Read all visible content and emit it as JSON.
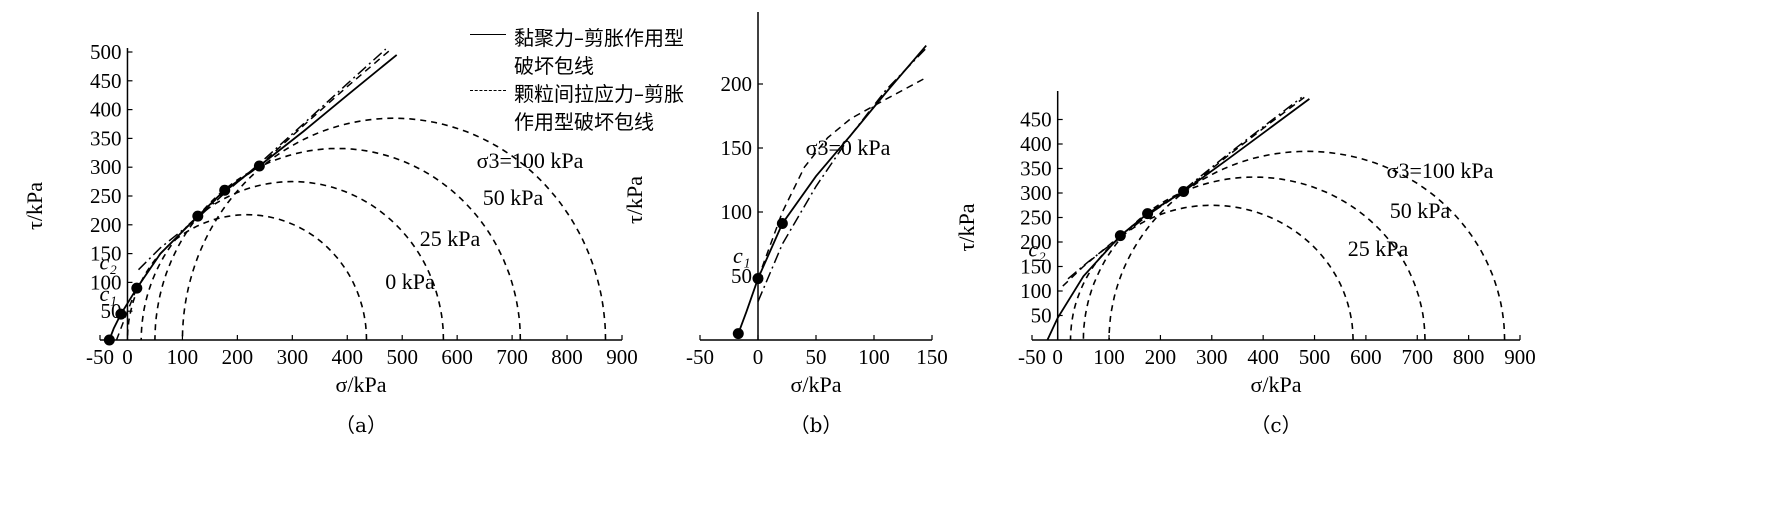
{
  "legend": {
    "entries": [
      {
        "label_line1": "黏聚力–剪胀作用型",
        "label_line2": "破坏包线",
        "style": "solid"
      },
      {
        "label_line1": "颗粒间拉应力–剪胀",
        "label_line2": "作用型破坏包线",
        "style": "dashdot"
      }
    ]
  },
  "chart_data": [
    {
      "id": "a",
      "type": "line",
      "panel_label": "（a）",
      "xlabel": "σ/kPa",
      "ylabel": "τ/kPa",
      "xlim": [
        -50,
        900
      ],
      "ylim": [
        0,
        500
      ],
      "xticks": [
        -50,
        0,
        100,
        200,
        300,
        400,
        500,
        600,
        700,
        800,
        900
      ],
      "yticks": [
        50,
        100,
        150,
        200,
        250,
        300,
        350,
        400,
        450,
        500
      ],
      "circles": [
        {
          "label": "0 kPa",
          "sigma3": 0,
          "sigma1": 435
        },
        {
          "label": "25 kPa",
          "sigma3": 25,
          "sigma1": 575
        },
        {
          "label": "50 kPa",
          "sigma3": 50,
          "sigma1": 715
        },
        {
          "label": "σ3=100 kPa",
          "sigma3": 100,
          "sigma1": 870
        }
      ],
      "points": [
        [
          -33,
          0
        ],
        [
          -12,
          45
        ],
        [
          17,
          90
        ],
        [
          128,
          215
        ],
        [
          177,
          260
        ],
        [
          240,
          302
        ]
      ],
      "series": [
        {
          "style": "solid",
          "x": [
            -33,
            -25,
            -12,
            17,
            60,
            128,
            177,
            240,
            320,
            400,
            490
          ],
          "y": [
            0,
            20,
            45,
            90,
            150,
            215,
            260,
            302,
            362,
            425,
            495
          ]
        },
        {
          "style": "dashed",
          "x": [
            -20,
            0,
            17,
            60,
            128,
            177,
            240,
            320,
            400,
            480
          ],
          "y": [
            0,
            50,
            90,
            150,
            215,
            258,
            302,
            372,
            440,
            505
          ]
        },
        {
          "style": "dashdot",
          "x": [
            20,
            60,
            128,
            177,
            240,
            320,
            400,
            470
          ],
          "y": [
            122,
            160,
            212,
            255,
            306,
            375,
            445,
            505
          ]
        }
      ],
      "annotations": [
        {
          "text": "c₂",
          "x": -35,
          "y": 122
        },
        {
          "text": "c₁",
          "x": -35,
          "y": 68
        }
      ]
    },
    {
      "id": "b",
      "type": "line",
      "panel_label": "（b）",
      "xlabel": "σ/kPa",
      "ylabel": "τ/kPa",
      "xlim": [
        -50,
        150
      ],
      "ylim": [
        0,
        250
      ],
      "xticks": [
        -50,
        0,
        50,
        100,
        150
      ],
      "yticks": [
        50,
        100,
        150,
        200
      ],
      "circles": [
        {
          "label": "σ3=0 kPa",
          "sigma3": 0,
          "sigma1": 0
        }
      ],
      "points": [
        [
          -17,
          5
        ],
        [
          0,
          48
        ],
        [
          21,
          91
        ]
      ],
      "series": [
        {
          "style": "solid",
          "x": [
            -17,
            -10,
            0,
            21,
            50,
            80,
            110,
            145
          ],
          "y": [
            5,
            22,
            48,
            91,
            128,
            160,
            193,
            230
          ]
        },
        {
          "style": "dashed",
          "x": [
            0,
            21,
            40,
            60,
            80,
            110,
            145
          ],
          "y": [
            48,
            100,
            135,
            158,
            173,
            188,
            205
          ]
        },
        {
          "style": "dashdot",
          "x": [
            0,
            21,
            50,
            80,
            110,
            145
          ],
          "y": [
            30,
            75,
            120,
            160,
            195,
            228
          ]
        }
      ],
      "annotations": [
        {
          "text": "c₁",
          "x": -14,
          "y": 60
        }
      ]
    },
    {
      "id": "c",
      "type": "line",
      "panel_label": "（c）",
      "xlabel": "σ/kPa",
      "ylabel": "τ/kPa",
      "xlim": [
        -50,
        900
      ],
      "ylim": [
        0,
        500
      ],
      "xticks": [
        -50,
        0,
        100,
        200,
        300,
        400,
        500,
        600,
        700,
        800,
        900
      ],
      "yticks": [
        50,
        100,
        150,
        200,
        250,
        300,
        350,
        400,
        450
      ],
      "circles": [
        {
          "label": "25 kPa",
          "sigma3": 25,
          "sigma1": 575
        },
        {
          "label": "50 kPa",
          "sigma3": 50,
          "sigma1": 715
        },
        {
          "label": "σ3=100 kPa",
          "sigma3": 100,
          "sigma1": 870
        }
      ],
      "points": [
        [
          122,
          213
        ],
        [
          175,
          258
        ],
        [
          245,
          303
        ]
      ],
      "series": [
        {
          "style": "solid",
          "x": [
            -20,
            0,
            50,
            122,
            175,
            245,
            330,
            410,
            490
          ],
          "y": [
            0,
            45,
            130,
            213,
            258,
            303,
            368,
            430,
            492
          ]
        },
        {
          "style": "dashed",
          "x": [
            10,
            50,
            122,
            175,
            245,
            330,
            410,
            480
          ],
          "y": [
            110,
            150,
            213,
            255,
            303,
            375,
            440,
            495
          ]
        },
        {
          "style": "dashdot",
          "x": [
            20,
            60,
            122,
            175,
            245,
            330,
            410,
            475
          ],
          "y": [
            125,
            160,
            210,
            254,
            306,
            378,
            443,
            495
          ]
        }
      ],
      "annotations": [
        {
          "text": "c₂",
          "x": -40,
          "y": 170
        }
      ]
    }
  ]
}
